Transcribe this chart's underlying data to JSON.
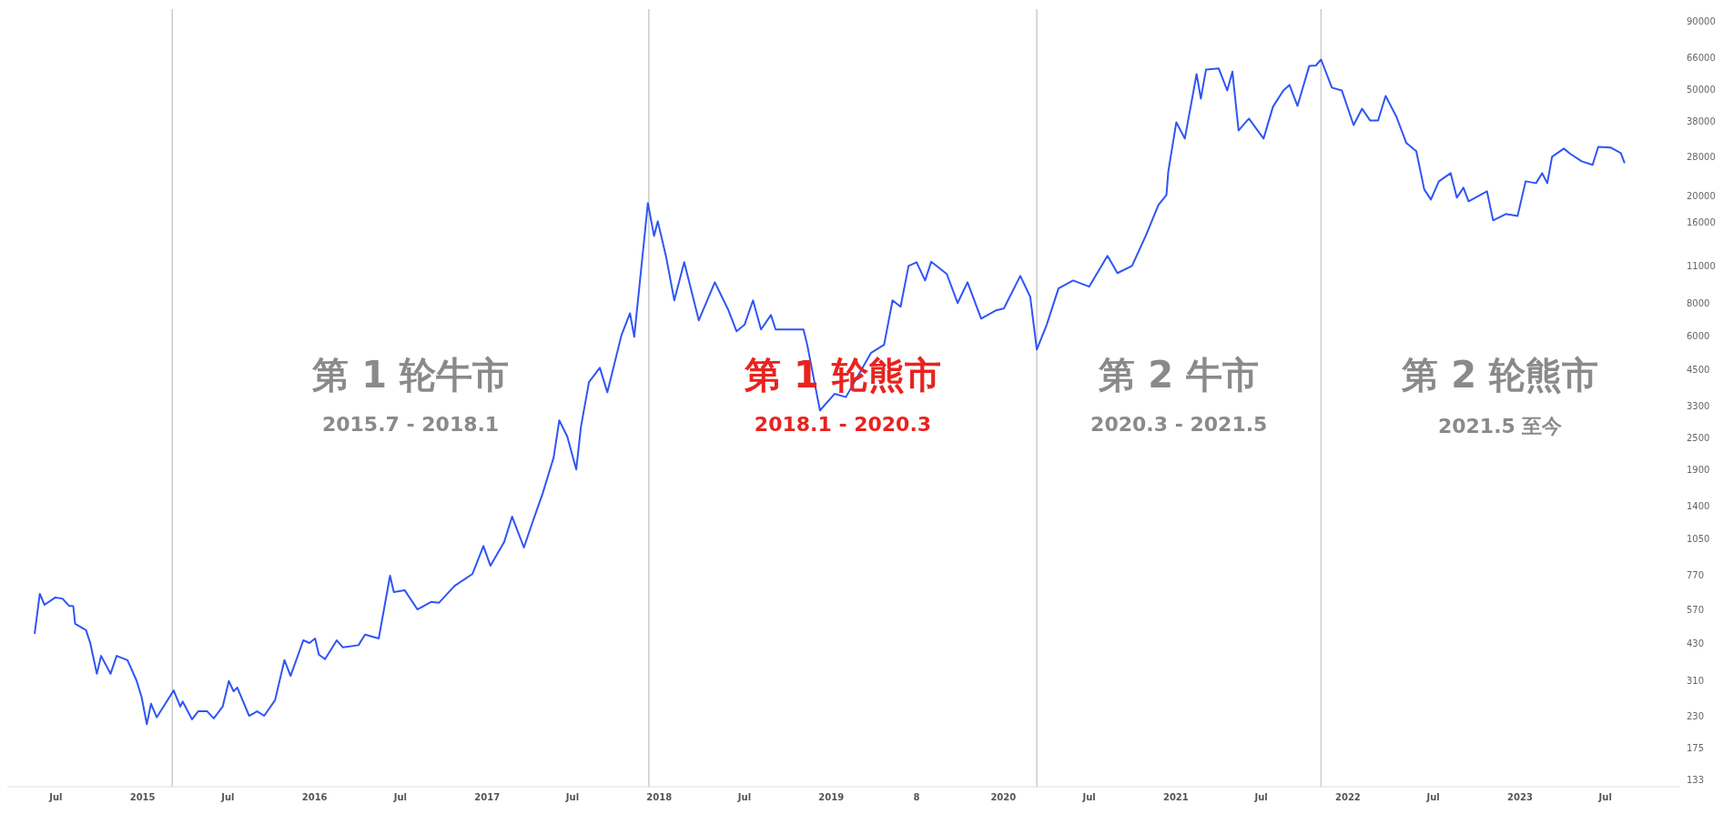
{
  "chart_data": {
    "type": "line",
    "log": "y",
    "grid": false,
    "legend": false,
    "marker": "none",
    "line_style": "solid",
    "xlim": [
      "2014-03-20",
      "2023-12-05"
    ],
    "ylim": [
      125,
      100000
    ],
    "xticks": [
      {
        "value": "2014-07-01",
        "label": "Jul"
      },
      {
        "value": "2015-01-01",
        "label": "2015"
      },
      {
        "value": "2015-07-01",
        "label": "Jul"
      },
      {
        "value": "2016-01-01",
        "label": "2016"
      },
      {
        "value": "2016-07-01",
        "label": "Jul"
      },
      {
        "value": "2017-01-01",
        "label": "2017"
      },
      {
        "value": "2017-07-01",
        "label": "Jul"
      },
      {
        "value": "2018-01-01",
        "label": "2018"
      },
      {
        "value": "2018-07-01",
        "label": "Jul"
      },
      {
        "value": "2019-01-01",
        "label": "2019"
      },
      {
        "value": "2019-07-01",
        "label": "8"
      },
      {
        "value": "2020-01-01",
        "label": "2020"
      },
      {
        "value": "2020-07-01",
        "label": "Jul"
      },
      {
        "value": "2021-01-01",
        "label": "2021"
      },
      {
        "value": "2021-07-01",
        "label": "Jul"
      },
      {
        "value": "2022-01-01",
        "label": "2022"
      },
      {
        "value": "2022-07-01",
        "label": "Jul"
      },
      {
        "value": "2023-01-01",
        "label": "2023"
      },
      {
        "value": "2023-07-01",
        "label": "Jul"
      }
    ],
    "yticks": [
      133,
      175,
      230,
      310,
      430,
      570,
      770,
      1050,
      1400,
      1900,
      2500,
      3300,
      4500,
      6000,
      8000,
      11000,
      16000,
      20000,
      28000,
      38000,
      50000,
      66000,
      90000
    ],
    "ref_lines": [
      {
        "axis": "x",
        "value": "2015-03-05",
        "color": "#cccccc"
      },
      {
        "axis": "x",
        "value": "2017-12-10",
        "color": "#cccccc"
      },
      {
        "axis": "x",
        "value": "2020-03-12",
        "color": "#cccccc"
      },
      {
        "axis": "x",
        "value": "2021-11-05",
        "color": "#cccccc"
      }
    ],
    "annotations": [
      "第 1 轮牛市",
      "2015.7 - 2018.1",
      "第 1 轮熊市",
      "2018.1 - 2020.3",
      "第 2 牛市",
      "2020.3 - 2021.5",
      "第 2 轮熊市",
      "2021.5 至今"
    ],
    "series": [
      {
        "color": "#2f55f5",
        "x": [
          "2014-05-17",
          "2014-05-28",
          "2014-06-07",
          "2014-06-30",
          "2014-07-15",
          "2014-07-29",
          "2014-08-07",
          "2014-08-11",
          "2014-09-03",
          "2014-09-12",
          "2014-09-26",
          "2014-10-05",
          "2014-10-25",
          "2014-11-07",
          "2014-11-30",
          "2014-12-19",
          "2014-12-30",
          "2015-01-10",
          "2015-01-19",
          "2015-01-31",
          "2015-03-08",
          "2015-03-22",
          "2015-03-27",
          "2015-04-16",
          "2015-04-29",
          "2015-05-18",
          "2015-06-01",
          "2015-06-20",
          "2015-07-03",
          "2015-07-13",
          "2015-07-21",
          "2015-08-15",
          "2015-09-01",
          "2015-09-16",
          "2015-10-09",
          "2015-10-29",
          "2015-11-11",
          "2015-12-08",
          "2015-12-21",
          "2016-01-02",
          "2016-01-10",
          "2016-01-23",
          "2016-02-17",
          "2016-03-01",
          "2016-04-03",
          "2016-04-17",
          "2016-05-16",
          "2016-06-09",
          "2016-06-17",
          "2016-07-10",
          "2016-08-06",
          "2016-09-04",
          "2016-09-21",
          "2016-10-24",
          "2016-12-01",
          "2016-12-24",
          "2017-01-08",
          "2017-02-06",
          "2017-02-23",
          "2017-03-20",
          "2017-04-06",
          "2017-04-29",
          "2017-05-22",
          "2017-06-03",
          "2017-06-20",
          "2017-07-09",
          "2017-07-19",
          "2017-08-05",
          "2017-08-28",
          "2017-09-13",
          "2017-10-13",
          "2017-10-31",
          "2017-11-09",
          "2017-12-08",
          "2017-12-21",
          "2017-12-29",
          "2018-01-16",
          "2018-02-02",
          "2018-02-23",
          "2018-03-26",
          "2018-04-29",
          "2018-05-28",
          "2018-06-14",
          "2018-07-01",
          "2018-07-19",
          "2018-08-05",
          "2018-08-26",
          "2018-09-05",
          "2018-10-13",
          "2018-11-03",
          "2018-11-11",
          "2018-12-08",
          "2019-01-08",
          "2019-02-01",
          "2019-03-26",
          "2019-04-23",
          "2019-05-11",
          "2019-05-28",
          "2019-06-14",
          "2019-07-01",
          "2019-07-19",
          "2019-08-01",
          "2019-09-03",
          "2019-09-26",
          "2019-10-17",
          "2019-11-15",
          "2019-12-16",
          "2020-01-02",
          "2020-02-06",
          "2020-02-27",
          "2020-03-12",
          "2020-04-02",
          "2020-04-27",
          "2020-05-28",
          "2020-07-01",
          "2020-08-09",
          "2020-08-30",
          "2020-09-30",
          "2020-10-29",
          "2020-11-25",
          "2020-12-12",
          "2020-12-16",
          "2021-01-02",
          "2021-01-20",
          "2021-02-14",
          "2021-02-23",
          "2021-03-06",
          "2021-04-02",
          "2021-04-20",
          "2021-05-01",
          "2021-05-14",
          "2021-06-05",
          "2021-07-06",
          "2021-07-26",
          "2021-08-17",
          "2021-08-30",
          "2021-09-16",
          "2021-10-11",
          "2021-10-25",
          "2021-11-05",
          "2021-11-28",
          "2021-12-19",
          "2022-01-13",
          "2022-01-31",
          "2022-02-17",
          "2022-03-06",
          "2022-03-22",
          "2022-04-14",
          "2022-05-05",
          "2022-05-26",
          "2022-06-12",
          "2022-06-26",
          "2022-07-13",
          "2022-08-07",
          "2022-08-20",
          "2022-09-03",
          "2022-09-14",
          "2022-10-23",
          "2022-11-05",
          "2022-12-02",
          "2022-12-27",
          "2023-01-13",
          "2023-02-04",
          "2023-02-17",
          "2023-02-28",
          "2023-03-10",
          "2023-04-04",
          "2023-04-18",
          "2023-05-12",
          "2023-06-04",
          "2023-06-16",
          "2023-07-13",
          "2023-08-03",
          "2023-08-11"
        ],
        "values": [
          465,
          656,
          597,
          636,
          630,
          592,
          590,
          507,
          480,
          430,
          330,
          385,
          330,
          385,
          371,
          312,
          270,
          214,
          255,
          227,
          286,
          249,
          260,
          223,
          239,
          239,
          225,
          249,
          310,
          284,
          293,
          230,
          239,
          230,
          263,
          371,
          324,
          440,
          430,
          447,
          389,
          374,
          440,
          414,
          422,
          462,
          447,
          767,
          666,
          677,
          574,
          612,
          608,
          703,
          779,
          990,
          835,
          1023,
          1274,
          977,
          1197,
          1560,
          2117,
          2915,
          2536,
          1910,
          2762,
          4050,
          4580,
          3710,
          6070,
          7320,
          5980,
          18860,
          14230,
          16130,
          11800,
          8180,
          11350,
          6890,
          9550,
          7500,
          6270,
          6630,
          8180,
          6370,
          7210,
          6370,
          6370,
          6370,
          5580,
          3175,
          3660,
          3560,
          5200,
          5580,
          8180,
          7740,
          11000,
          11350,
          9700,
          11400,
          10260,
          7990,
          9550,
          6990,
          7500,
          7620,
          10090,
          8440,
          5360,
          6630,
          9060,
          9700,
          9200,
          11990,
          10340,
          11000,
          14230,
          18560,
          20240,
          24800,
          37800,
          32860,
          57200,
          46330,
          59500,
          60000,
          49700,
          58400,
          35240,
          39000,
          32860,
          43200,
          49700,
          52100,
          43500,
          61400,
          61600,
          64800,
          50900,
          49700,
          36900,
          42500,
          38400,
          38400,
          47400,
          39600,
          31600,
          29460,
          21200,
          19460,
          22750,
          24400,
          19770,
          21540,
          19170,
          20880,
          16260,
          17180,
          16900,
          22750,
          22400,
          24400,
          22400,
          28100,
          30150,
          28800,
          27030,
          26200,
          30600,
          30400,
          29000,
          26600
        ]
      }
    ]
  }
}
